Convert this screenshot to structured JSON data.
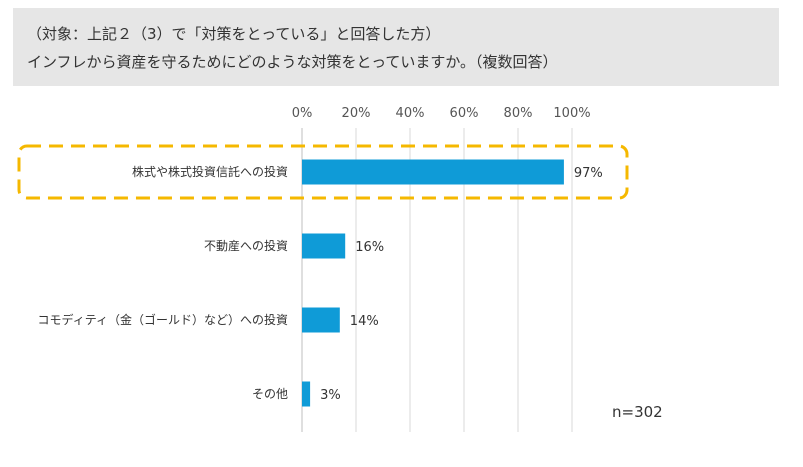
{
  "header": {
    "line1": "（対象：上記２（3）で「対策をとっている」と回答した方）",
    "line2": "インフレから資産を守るためにどのような対策をとっていますか。（複数回答）"
  },
  "chart_data": {
    "type": "bar",
    "orientation": "horizontal",
    "categories": [
      "株式や株式投資信託への投資",
      "不動産への投資",
      "コモディティ（金（ゴールド）など）への投資",
      "その他"
    ],
    "values": [
      97,
      16,
      14,
      3
    ],
    "value_labels": [
      "97%",
      "16%",
      "14%",
      "3%"
    ],
    "ticks": [
      "0%",
      "20%",
      "40%",
      "60%",
      "80%",
      "100%"
    ],
    "xlim": [
      0,
      100
    ],
    "highlighted_category": "株式や株式投資信託への投資",
    "n_label": "n=302",
    "colors": {
      "bar": "#0f9bd7",
      "highlight": "#f5b800",
      "grid": "#d9d9d9"
    }
  }
}
